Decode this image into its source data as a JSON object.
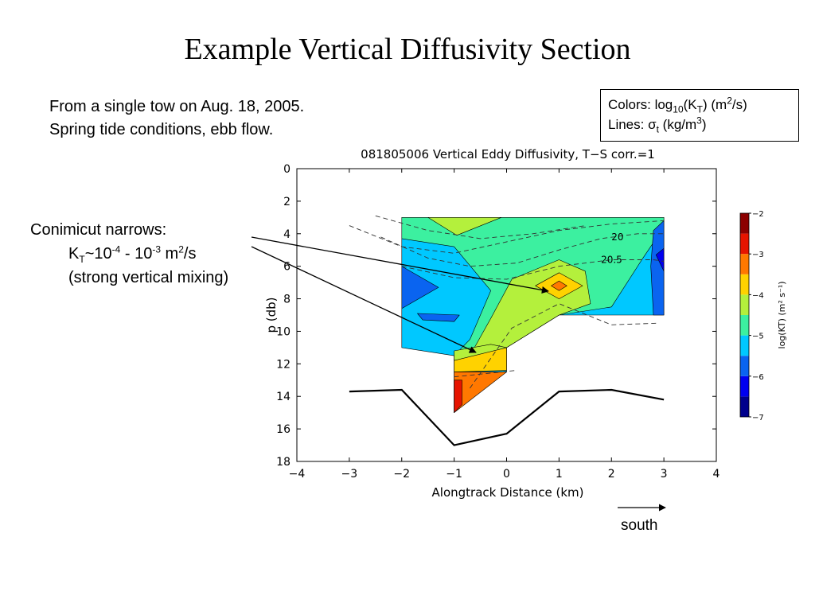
{
  "slide": {
    "title": "Example Vertical Diffusivity Section",
    "intro_line1": "From a single tow on Aug. 18, 2005.",
    "intro_line2": "Spring tide conditions, ebb flow.",
    "legend_colors_prefix": "Colors: log",
    "legend_colors_sub": "10",
    "legend_colors_k": "(K",
    "legend_colors_ksub": "T",
    "legend_colors_unit": ") (m",
    "legend_colors_unit_sup": "2",
    "legend_colors_unit_end": "/s)",
    "legend_lines_prefix": "Lines: ",
    "legend_lines_sigma": "σ",
    "legend_lines_sigma_sub": "t",
    "legend_lines_unit": " (kg/m",
    "legend_lines_unit_sup": "3",
    "legend_lines_unit_end": ")",
    "callout_line1": "Conimicut narrows:",
    "callout_k": "K",
    "callout_k_sub": "T",
    "callout_range_a": "~10",
    "callout_exp_a": "-4",
    "callout_range_b": " - 10",
    "callout_exp_b": "-3",
    "callout_unit": " m",
    "callout_unit_sup": "2",
    "callout_unit_end": "/s",
    "callout_line3": "(strong vertical mixing)",
    "direction_label": "south"
  },
  "chart_data": {
    "type": "heatmap",
    "title": "081805006 Vertical Eddy Diffusivity, T−S corr.=1",
    "xlabel": "Alongtrack Distance (km)",
    "ylabel": "p (db)",
    "xlim": [
      -4,
      4
    ],
    "ylim": [
      18,
      0
    ],
    "x_ticks": [
      -4,
      -3,
      -2,
      -1,
      0,
      1,
      2,
      3,
      4
    ],
    "x_tick_labels": [
      "−4",
      "−3",
      "−2",
      "−1",
      "0",
      "1",
      "2",
      "3",
      "4"
    ],
    "y_ticks": [
      0,
      2,
      4,
      6,
      8,
      10,
      12,
      14,
      16,
      18
    ],
    "y_tick_labels": [
      "0",
      "2",
      "4",
      "6",
      "8",
      "10",
      "12",
      "14",
      "16",
      "18"
    ],
    "colorbar": {
      "label": "log(KT) (m² s⁻¹)",
      "range": [
        -7,
        -2
      ],
      "tick_values": [
        -2,
        -3,
        -4,
        -5,
        -6,
        -7
      ],
      "tick_labels": [
        "−2",
        "−3",
        "−4",
        "−5",
        "−6",
        "−7"
      ],
      "levels": [
        {
          "from": -7.0,
          "to": -6.5,
          "color": "#00008c"
        },
        {
          "from": -6.5,
          "to": -6.0,
          "color": "#0000f0"
        },
        {
          "from": -6.0,
          "to": -5.5,
          "color": "#0a64f0"
        },
        {
          "from": -5.5,
          "to": -5.0,
          "color": "#00c8ff"
        },
        {
          "from": -5.0,
          "to": -4.5,
          "color": "#3cf0a0"
        },
        {
          "from": -4.5,
          "to": -4.0,
          "color": "#b4f03c"
        },
        {
          "from": -4.0,
          "to": -3.5,
          "color": "#ffd200"
        },
        {
          "from": -3.5,
          "to": -3.0,
          "color": "#ff7800"
        },
        {
          "from": -3.0,
          "to": -2.5,
          "color": "#e61400"
        },
        {
          "from": -2.5,
          "to": -2.0,
          "color": "#8c0000"
        }
      ]
    },
    "fill_regions": [
      {
        "name": "field-background",
        "color": "#00c8ff",
        "polygon": [
          [
            -2,
            3
          ],
          [
            3,
            3
          ],
          [
            3,
            9
          ],
          [
            1,
            9
          ],
          [
            0,
            11
          ],
          [
            0,
            12.5
          ],
          [
            -1,
            12.5
          ],
          [
            -1,
            15
          ],
          [
            -1,
            11.5
          ],
          [
            -2,
            11
          ]
        ]
      },
      {
        "name": "cyan-upper",
        "color": "#3cf0a0",
        "polygon": [
          [
            -2,
            3
          ],
          [
            3,
            3
          ],
          [
            3,
            3.6
          ],
          [
            2.6,
            5.5
          ],
          [
            2,
            8.5
          ],
          [
            1,
            9
          ],
          [
            0,
            11
          ],
          [
            -1,
            11.5
          ],
          [
            -0.7,
            10.5
          ],
          [
            -0.3,
            7.5
          ],
          [
            -1,
            4.8
          ],
          [
            -2,
            4.3
          ]
        ]
      },
      {
        "name": "green-core",
        "color": "#b4f03c",
        "polygon": [
          [
            -0.7,
            11.5
          ],
          [
            -0.3,
            9.2
          ],
          [
            0.1,
            6.8
          ],
          [
            1,
            5.6
          ],
          [
            1.5,
            6.3
          ],
          [
            1.6,
            8.3
          ],
          [
            1,
            9
          ],
          [
            0,
            11
          ],
          [
            -1,
            11.5
          ]
        ]
      },
      {
        "name": "yellow-core",
        "color": "#ffd200",
        "polygon": [
          [
            0.55,
            7.2
          ],
          [
            1,
            6.4
          ],
          [
            1.45,
            7.2
          ],
          [
            1,
            8
          ]
        ]
      },
      {
        "name": "orange-core",
        "color": "#ff7800",
        "polygon": [
          [
            0.85,
            7.2
          ],
          [
            1,
            6.9
          ],
          [
            1.15,
            7.2
          ],
          [
            1,
            7.5
          ]
        ]
      },
      {
        "name": "top-yellow",
        "color": "#ffd200",
        "polygon": [
          [
            -1.2,
            3
          ],
          [
            -0.5,
            3
          ],
          [
            -0.95,
            3.5
          ]
        ]
      },
      {
        "name": "top-green",
        "color": "#b4f03c",
        "polygon": [
          [
            -1.5,
            3
          ],
          [
            -0.1,
            3
          ],
          [
            -0.95,
            4.1
          ]
        ]
      },
      {
        "name": "bottom-yellow",
        "color": "#ffd200",
        "polygon": [
          [
            -1,
            11.7
          ],
          [
            0,
            11
          ],
          [
            0,
            12.4
          ],
          [
            -1,
            12.5
          ]
        ]
      },
      {
        "name": "bottom-green",
        "color": "#b4f03c",
        "polygon": [
          [
            -1,
            11.2
          ],
          [
            -0.3,
            10.8
          ],
          [
            0,
            11
          ],
          [
            -1,
            11.8
          ]
        ]
      },
      {
        "name": "bottom-orange",
        "color": "#ff7800",
        "polygon": [
          [
            -1,
            12.5
          ],
          [
            0,
            12.5
          ],
          [
            -1,
            15
          ]
        ]
      },
      {
        "name": "bottom-red",
        "color": "#e61400",
        "polygon": [
          [
            -1,
            13
          ],
          [
            -0.85,
            13
          ],
          [
            -0.85,
            14.5
          ],
          [
            -1,
            15
          ]
        ]
      },
      {
        "name": "blue-left",
        "color": "#0a64f0",
        "polygon": [
          [
            -2,
            6
          ],
          [
            -1.3,
            7.3
          ],
          [
            -2,
            8.6
          ]
        ]
      },
      {
        "name": "blue-right",
        "color": "#0a64f0",
        "polygon": [
          [
            2.8,
            3.8
          ],
          [
            3,
            3.2
          ],
          [
            3,
            9
          ],
          [
            2.8,
            9
          ],
          [
            2.75,
            6
          ]
        ]
      },
      {
        "name": "dark-blue-right",
        "color": "#0000f0",
        "polygon": [
          [
            2.85,
            5.3
          ],
          [
            3,
            4.9
          ],
          [
            3,
            6.3
          ]
        ]
      },
      {
        "name": "blue-streak",
        "color": "#0a64f0",
        "polygon": [
          [
            -1.7,
            8.9
          ],
          [
            -0.9,
            9.0
          ],
          [
            -1.0,
            9.4
          ],
          [
            -1.6,
            9.3
          ]
        ]
      }
    ],
    "contour_lines": [
      {
        "label": "20",
        "points": [
          [
            -2.4,
            4.2
          ],
          [
            -1.5,
            5.5
          ],
          [
            -0.7,
            6.0
          ],
          [
            0.2,
            5.8
          ],
          [
            1,
            5.0
          ],
          [
            1.8,
            4.3
          ],
          [
            2.5,
            4.0
          ],
          [
            3,
            4.0
          ]
        ]
      },
      {
        "label": "20.5",
        "points": [
          [
            -2.0,
            6.0
          ],
          [
            -1,
            6.7
          ],
          [
            0,
            6.8
          ],
          [
            1,
            6.0
          ],
          [
            2,
            5.6
          ],
          [
            2.8,
            5.6
          ],
          [
            3,
            5.7
          ]
        ]
      },
      {
        "label": "",
        "points": [
          [
            -3,
            3.5
          ],
          [
            -2,
            4.8
          ],
          [
            -1,
            5.2
          ],
          [
            0,
            4.5
          ],
          [
            1,
            3.8
          ],
          [
            2,
            3.4
          ],
          [
            3,
            3.2
          ]
        ]
      },
      {
        "label": "",
        "points": [
          [
            -2.5,
            2.9
          ],
          [
            -1.5,
            3.8
          ],
          [
            -0.5,
            4.3
          ],
          [
            0.5,
            4.0
          ],
          [
            1.5,
            3.5
          ]
        ]
      },
      {
        "label": "",
        "points": [
          [
            -1,
            12.8
          ],
          [
            0.2,
            12.4
          ]
        ]
      },
      {
        "label": "",
        "points": [
          [
            -0.7,
            13.5
          ],
          [
            0.1,
            9.8
          ],
          [
            1,
            8.3
          ],
          [
            2,
            9.6
          ],
          [
            2.9,
            9.5
          ]
        ]
      }
    ],
    "bottom_profile": {
      "x": [
        -3,
        -2,
        -1,
        0,
        1,
        2,
        3
      ],
      "y": [
        13.7,
        13.6,
        17.0,
        16.3,
        13.7,
        13.6,
        14.2
      ]
    },
    "annotations": [
      {
        "text": "20",
        "x": 2.0,
        "y": 4.2
      },
      {
        "text": "20.5",
        "x": 1.8,
        "y": 5.6
      }
    ]
  }
}
